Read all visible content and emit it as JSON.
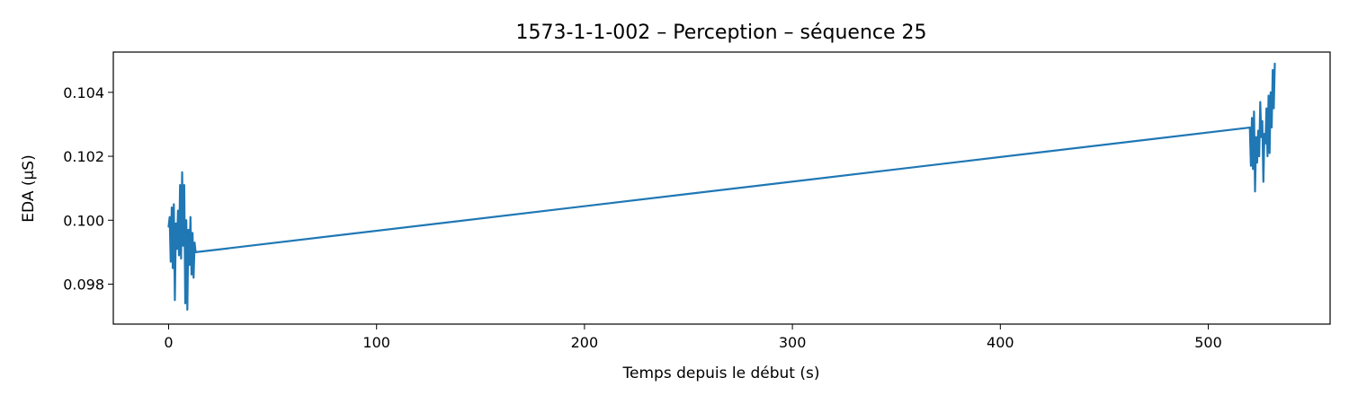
{
  "chart_data": {
    "type": "line",
    "title": "1573-1-1-002 – Perception – séquence 25",
    "xlabel": "Temps depuis le début (s)",
    "ylabel": "EDA (µS)",
    "xlim": [
      -26.6,
      558.6
    ],
    "ylim": [
      0.09675,
      0.10526
    ],
    "xticks": [
      0,
      100,
      200,
      300,
      400,
      500
    ],
    "yticks": [
      0.098,
      0.1,
      0.102,
      0.104
    ],
    "ytick_labels": [
      "0.098",
      "0.100",
      "0.102",
      "0.104"
    ],
    "grid": false,
    "color": "#1f77b4",
    "series": [
      {
        "x": [
          0,
          0.5,
          1.0,
          1.5,
          2.0,
          2.5,
          3.0,
          3.5,
          4.0,
          4.5,
          5.0,
          5.5,
          6.0,
          6.5,
          7.0,
          7.5,
          8.0,
          8.5,
          9.0,
          9.5,
          10.0,
          10.5,
          11.0,
          11.5,
          12.0,
          12.5,
          13.0,
          520.0,
          520.5,
          521.0,
          521.5,
          522.0,
          522.5,
          523.0,
          523.5,
          524.0,
          524.5,
          525.0,
          525.5,
          526.0,
          526.5,
          527.0,
          527.5,
          528.0,
          528.5,
          529.0,
          529.5,
          530.0,
          530.5,
          531.0,
          531.5,
          532.0
        ],
        "y": [
          0.0998,
          0.1001,
          0.0987,
          0.1004,
          0.0985,
          0.1005,
          0.0975,
          0.0999,
          0.0991,
          0.1003,
          0.0989,
          0.1011,
          0.0988,
          0.1015,
          0.0992,
          0.1011,
          0.0974,
          0.1,
          0.0972,
          0.0997,
          0.0986,
          0.1001,
          0.0983,
          0.0996,
          0.0982,
          0.0993,
          0.099,
          0.1029,
          0.1017,
          0.1032,
          0.1016,
          0.1034,
          0.1009,
          0.1026,
          0.1018,
          0.1028,
          0.102,
          0.1037,
          0.1026,
          0.1031,
          0.1012,
          0.1027,
          0.1024,
          0.1035,
          0.102,
          0.1039,
          0.1021,
          0.104,
          0.1029,
          0.1047,
          0.1035,
          0.1049
        ]
      }
    ]
  }
}
